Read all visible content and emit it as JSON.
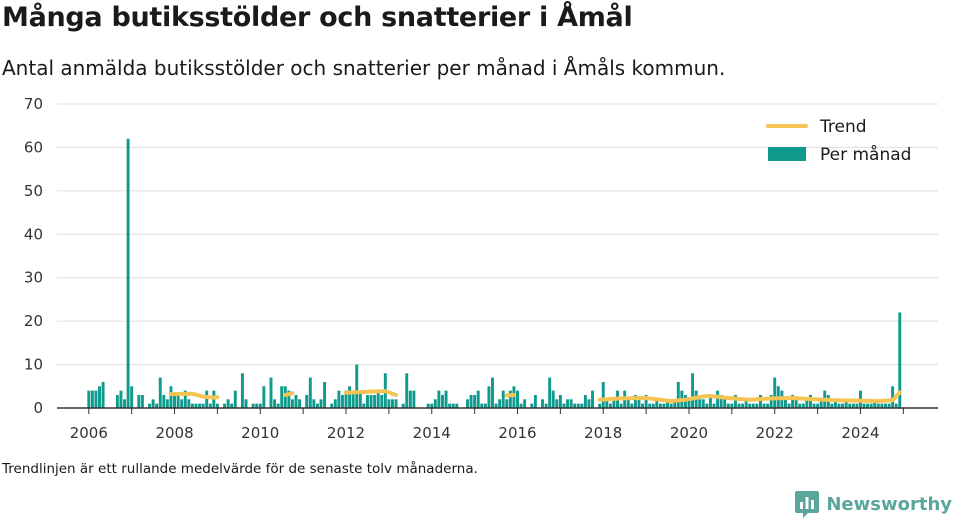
{
  "header": {
    "title": "Många butiksstölder och snatterier i Åmål",
    "subtitle": "Antal anmälda butiksstölder och snatterier per månad i Åmåls kommun."
  },
  "footer": {
    "note": "Trendlinjen är ett rullande medelvärde för de senaste tolv månaderna.",
    "brand": "Newsworthy",
    "brand_icon": "bar-chart-icon"
  },
  "colors": {
    "bars": "#0f9a8e",
    "trend": "#f5c453",
    "grid": "#dddddd",
    "axis": "#333333",
    "brand": "#5aa69a"
  },
  "chart_data": {
    "type": "bar",
    "x_start": "2006-01",
    "x_end": "2024-12",
    "ylim": [
      0,
      70
    ],
    "yticks": [
      0,
      10,
      20,
      30,
      40,
      50,
      60,
      70
    ],
    "xticks": [
      "2006",
      "2008",
      "2010",
      "2012",
      "2014",
      "2016",
      "2018",
      "2020",
      "2022",
      "2024"
    ],
    "legend": {
      "position": "top-right",
      "trend_label": "Trend",
      "bars_label": "Per månad"
    },
    "grid": true,
    "series": [
      {
        "name": "Per månad",
        "kind": "bar",
        "values_by_year": {
          "2006": [
            4,
            4,
            4,
            5,
            6,
            0,
            0,
            0,
            3,
            4,
            2,
            62
          ],
          "2007": [
            5,
            0,
            3,
            3,
            0,
            1,
            2,
            1,
            7,
            3,
            2,
            5
          ],
          "2008": [
            3,
            3,
            2,
            4,
            2,
            1,
            1,
            1,
            1,
            4,
            1,
            4
          ],
          "2009": [
            1,
            0,
            1,
            2,
            1,
            4,
            0,
            8,
            2,
            0,
            1,
            1
          ],
          "2010": [
            1,
            5,
            0,
            7,
            2,
            1,
            5,
            5,
            4,
            2,
            3,
            2
          ],
          "2011": [
            0,
            3,
            7,
            2,
            1,
            2,
            6,
            0,
            1,
            2,
            4,
            3
          ],
          "2012": [
            4,
            5,
            4,
            10,
            4,
            1,
            3,
            3,
            3,
            4,
            3,
            8
          ],
          "2013": [
            2,
            2,
            2,
            0,
            1,
            8,
            4,
            4,
            0,
            0,
            0,
            1
          ],
          "2014": [
            1,
            2,
            4,
            3,
            4,
            1,
            1,
            1,
            0,
            0,
            2,
            3
          ],
          "2015": [
            3,
            4,
            1,
            1,
            5,
            7,
            1,
            2,
            4,
            2,
            4,
            5
          ],
          "2016": [
            4,
            1,
            2,
            0,
            1,
            3,
            0,
            2,
            1,
            7,
            4,
            2
          ],
          "2017": [
            3,
            1,
            2,
            2,
            1,
            1,
            1,
            3,
            2,
            4,
            0,
            1
          ],
          "2018": [
            6,
            2,
            1,
            2,
            4,
            1,
            4,
            2,
            1,
            3,
            2,
            1
          ],
          "2019": [
            3,
            1,
            1,
            2,
            1,
            1,
            2,
            1,
            2,
            6,
            4,
            3
          ],
          "2020": [
            2,
            8,
            4,
            2,
            2,
            1,
            3,
            1,
            4,
            3,
            2,
            1
          ],
          "2021": [
            1,
            3,
            1,
            1,
            2,
            1,
            1,
            1,
            3,
            1,
            1,
            3
          ],
          "2022": [
            7,
            5,
            4,
            2,
            1,
            3,
            2,
            1,
            1,
            2,
            3,
            1
          ],
          "2023": [
            1,
            2,
            4,
            3,
            1,
            2,
            1,
            1,
            2,
            1,
            1,
            1
          ],
          "2024": [
            4,
            1,
            1,
            1,
            2,
            1,
            1,
            1,
            1,
            5,
            1,
            22
          ]
        }
      },
      {
        "name": "Trend",
        "kind": "line",
        "segments": [
          {
            "x": [
              "2007-12",
              "2008-06",
              "2008-09",
              "2008-12",
              "2009-01"
            ],
            "y": [
              3.2,
              3.3,
              2.6,
              2.4,
              2.5
            ]
          },
          {
            "x": [
              "2010-08",
              "2010-09",
              "2010-10"
            ],
            "y": [
              3.0,
              3.2,
              3.4
            ]
          },
          {
            "x": [
              "2012-01",
              "2012-06",
              "2012-12",
              "2013-03"
            ],
            "y": [
              3.5,
              3.7,
              3.9,
              3.0
            ]
          },
          {
            "x": [
              "2015-10",
              "2015-12"
            ],
            "y": [
              2.9,
              3.0
            ]
          },
          {
            "x": [
              "2017-12",
              "2018-06",
              "2019-01",
              "2019-08",
              "2019-12",
              "2020-06",
              "2020-12",
              "2021-06",
              "2021-12",
              "2022-06",
              "2022-12",
              "2023-06",
              "2023-12",
              "2024-06",
              "2024-10",
              "2024-12"
            ],
            "y": [
              1.9,
              2.2,
              2.3,
              1.6,
              1.9,
              2.8,
              2.3,
              1.9,
              2.2,
              2.3,
              2.0,
              1.8,
              1.7,
              1.6,
              1.8,
              3.6
            ]
          }
        ]
      }
    ]
  }
}
